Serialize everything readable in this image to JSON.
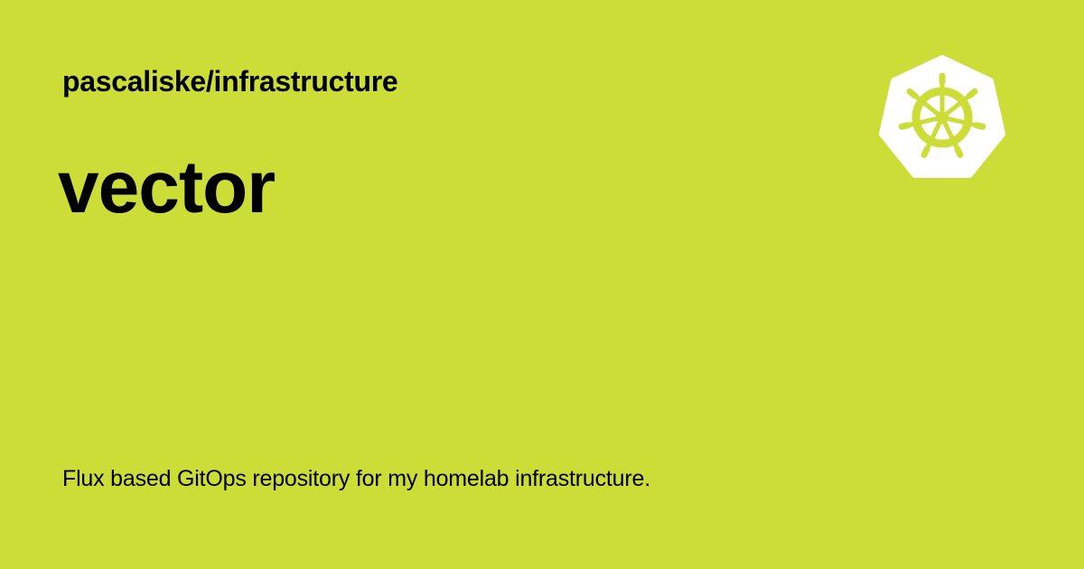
{
  "repo_name": "pascaliske/infrastructure",
  "page_title": "vector",
  "description": "Flux based GitOps repository for my homelab infrastructure.",
  "logo": {
    "icon": "kubernetes-helm-wheel-icon"
  },
  "colors": {
    "background": "#cddd37",
    "text": "#000000",
    "logo_fill": "#ffffff"
  }
}
